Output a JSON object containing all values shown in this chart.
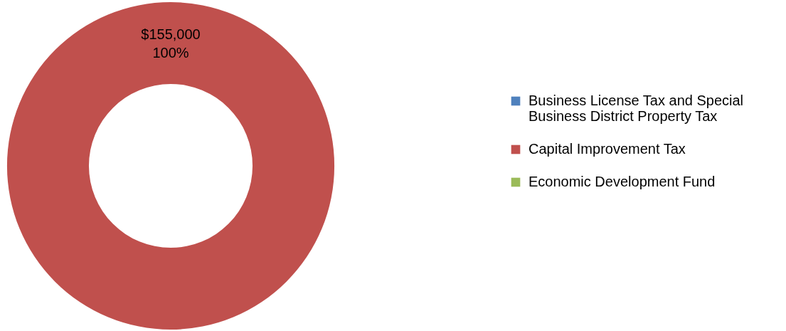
{
  "chart_data": {
    "type": "donut",
    "categories": [
      "Business License Tax and Special Business District Property Tax",
      "Capital Improvement Tax",
      "Economic Development Fund"
    ],
    "values": [
      0,
      155000,
      0
    ],
    "colors": [
      "#4f81bd",
      "#c0504d",
      "#9bbb59"
    ],
    "value_labels": [
      null,
      "$155,000\n100%",
      null
    ],
    "legend": "right"
  }
}
